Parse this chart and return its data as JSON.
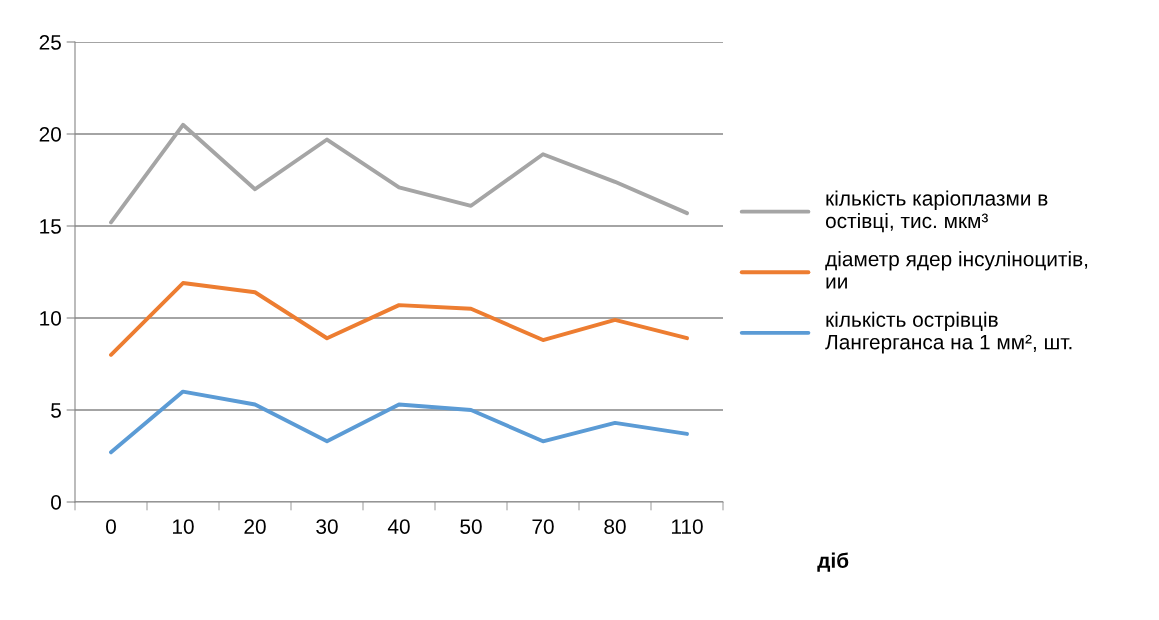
{
  "chart_data": {
    "type": "line",
    "xlabel": "діб",
    "categories": [
      "0",
      "10",
      "20",
      "30",
      "40",
      "50",
      "70",
      "80",
      "110"
    ],
    "series": [
      {
        "name": "кількість каріоплазми в\nостівці, тис. мкм³",
        "color": "#a5a5a5",
        "values": [
          15.2,
          20.5,
          17.0,
          19.7,
          17.1,
          16.1,
          18.9,
          17.4,
          15.7
        ]
      },
      {
        "name": "діаметр ядер інсуліноцитів,\nии",
        "color": "#ed7d31",
        "values": [
          8.0,
          11.9,
          11.4,
          8.9,
          10.7,
          10.5,
          8.8,
          9.9,
          8.9
        ]
      },
      {
        "name": "кількість острівців\nЛангерганса на 1 мм², шт.",
        "color": "#5b9bd5",
        "values": [
          2.7,
          6.0,
          5.3,
          3.3,
          5.3,
          5.0,
          3.3,
          4.3,
          3.7
        ]
      }
    ],
    "ylim": [
      0,
      25
    ],
    "yticks": [
      0,
      5,
      10,
      15,
      20,
      25
    ],
    "grid": "y",
    "legend": "right",
    "marker": "none",
    "line_style": "solid"
  }
}
